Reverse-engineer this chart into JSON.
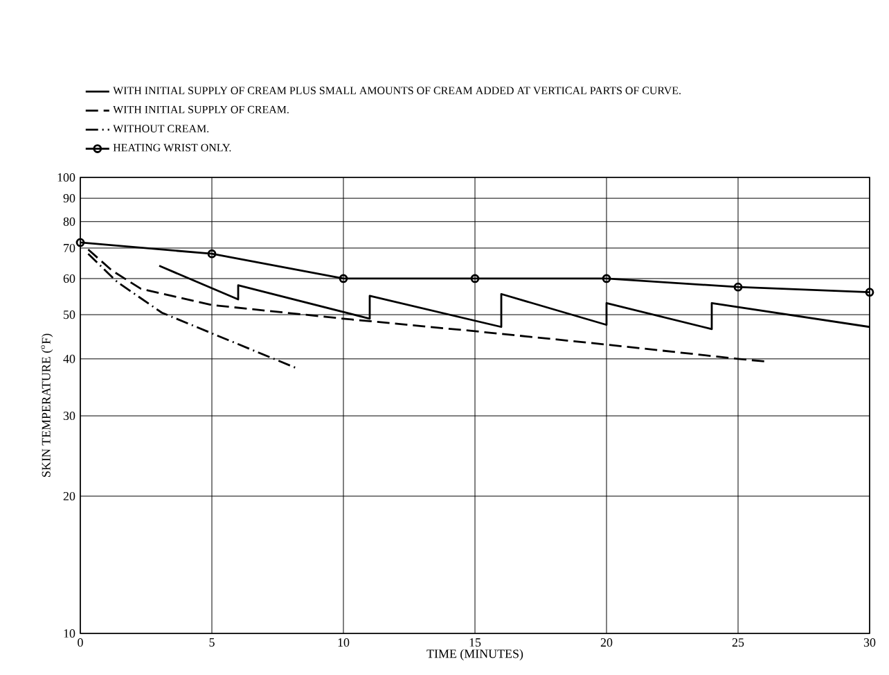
{
  "chart_data": {
    "type": "line",
    "xlabel": "TIME (MINUTES)",
    "ylabel": "SKIN TEMPERATURE ($^{o}$F)",
    "xlim": [
      0,
      30
    ],
    "xticks": [
      0,
      5,
      10,
      15,
      20,
      25,
      30
    ],
    "ylim": [
      10,
      100
    ],
    "yticks": [
      10,
      20,
      30,
      40,
      50,
      60,
      70,
      80,
      90,
      100
    ],
    "log": "y",
    "grid": true,
    "legend": "top",
    "series": [
      {
        "name": "WITH INITIAL SUPPLY OF CREAM PLUS SMALL AMOUNTS OF CREAM ADDED AT VERTICAL PARTS OF CURVE.",
        "color": "#000000",
        "line_style": "solid",
        "marker": "none",
        "x": [
          3,
          6,
          6,
          11,
          11,
          16,
          16,
          20,
          20,
          24,
          24,
          30
        ],
        "values": [
          64,
          54,
          58,
          49,
          55,
          47,
          55.5,
          47.5,
          53,
          46.5,
          53,
          47
        ]
      },
      {
        "name": "WITH INITIAL SUPPLY OF CREAM.",
        "color": "#000000",
        "line_style": "dashed",
        "marker": "none",
        "x": [
          0.3,
          1.2,
          2.3,
          5,
          10,
          15,
          20,
          25,
          26
        ],
        "values": [
          69.5,
          62.5,
          57,
          52.5,
          49,
          46,
          43,
          40,
          39.5
        ]
      },
      {
        "name": "WITHOUT CREAM.",
        "color": "#000000",
        "line_style": "dashdot",
        "marker": "none",
        "x": [
          0.3,
          1.4,
          3.1,
          5,
          8.3
        ],
        "values": [
          68,
          59,
          50.5,
          45.5,
          38
        ]
      },
      {
        "name": "HEATING WRIST ONLY.",
        "color": "#000000",
        "line_style": "solid",
        "marker": "circle",
        "x": [
          0,
          5,
          10,
          15,
          20,
          25,
          30
        ],
        "values": [
          72,
          68,
          60,
          60,
          60,
          57.5,
          56
        ]
      }
    ]
  }
}
